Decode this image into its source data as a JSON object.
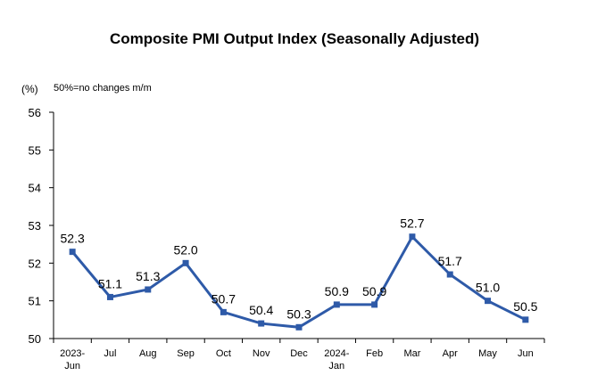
{
  "chart_data": {
    "type": "line",
    "title": "Composite PMI Output Index (Seasonally Adjusted)",
    "ylabel": "(%)",
    "note": "50%=no changes m/m",
    "xlabel": "",
    "categories": [
      "2023-Jun",
      "Jul",
      "Aug",
      "Sep",
      "Oct",
      "Nov",
      "Dec",
      "2024-Jan",
      "Feb",
      "Mar",
      "Apr",
      "May",
      "Jun"
    ],
    "category_lines": [
      [
        "2023-",
        "Jun"
      ],
      [
        "Jul"
      ],
      [
        "Aug"
      ],
      [
        "Sep"
      ],
      [
        "Oct"
      ],
      [
        "Nov"
      ],
      [
        "Dec"
      ],
      [
        "2024-",
        "Jan"
      ],
      [
        "Feb"
      ],
      [
        "Mar"
      ],
      [
        "Apr"
      ],
      [
        "May"
      ],
      [
        "Jun"
      ]
    ],
    "series": [
      {
        "values": [
          52.3,
          51.1,
          51.3,
          52.0,
          50.7,
          50.4,
          50.3,
          50.9,
          50.9,
          52.7,
          51.7,
          51.0,
          50.5
        ],
        "value_labels": [
          "52.3",
          "51.1",
          "51.3",
          "52.0",
          "50.7",
          "50.4",
          "50.3",
          "50.9",
          "50.9",
          "52.7",
          "51.7",
          "51.0",
          "50.5"
        ],
        "color": "#2e5aa8"
      }
    ],
    "ylim": [
      50,
      56
    ],
    "yticks": [
      50,
      51,
      52,
      53,
      54,
      55,
      56
    ],
    "grid": false,
    "legend": "none"
  }
}
